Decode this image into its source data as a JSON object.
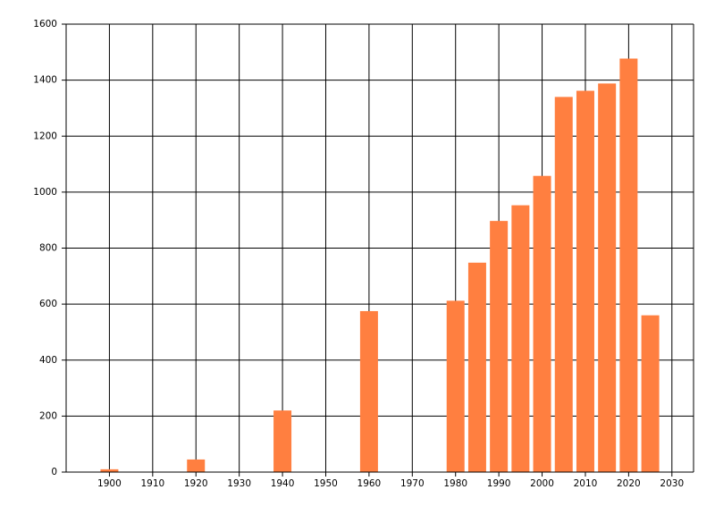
{
  "chart_data": {
    "type": "bar",
    "x": [
      1900,
      1920,
      1940,
      1960,
      1980,
      1985,
      1990,
      1995,
      2000,
      2005,
      2010,
      2015,
      2020,
      2025
    ],
    "values": [
      10,
      45,
      220,
      575,
      612,
      748,
      897,
      953,
      1058,
      1340,
      1362,
      1388,
      1477,
      560
    ],
    "color": "#ff7f40",
    "xlim": [
      1890,
      2035
    ],
    "xticks": [
      1900,
      1910,
      1920,
      1930,
      1940,
      1950,
      1960,
      1970,
      1980,
      1990,
      2000,
      2010,
      2020,
      2030
    ],
    "ylim": [
      0,
      1600
    ],
    "yticks": [
      0,
      200,
      400,
      600,
      800,
      1000,
      1200,
      1400,
      1600
    ],
    "grid": true
  }
}
